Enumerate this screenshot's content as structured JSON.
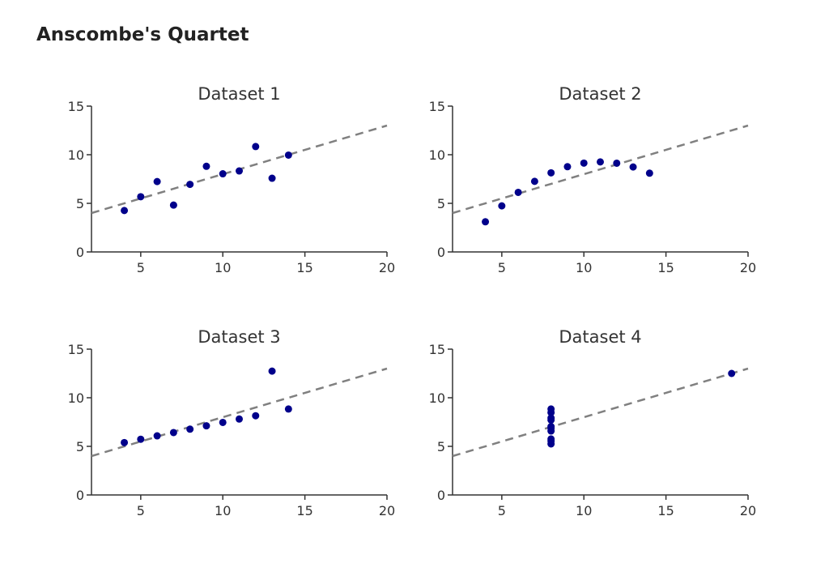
{
  "title": "Anscombe's Quartet",
  "colors": {
    "points": "#00008b",
    "fit_line": "#808080",
    "axis": "#333333"
  },
  "chart_data": [
    {
      "type": "scatter",
      "title": "Dataset 1",
      "xlim": [
        2,
        20
      ],
      "ylim": [
        0,
        15
      ],
      "xticks": [
        5,
        10,
        15,
        20
      ],
      "yticks": [
        0,
        5,
        10,
        15
      ],
      "grid": false,
      "x": [
        10,
        8,
        13,
        9,
        11,
        14,
        6,
        4,
        12,
        7,
        5
      ],
      "y": [
        8.04,
        6.95,
        7.58,
        8.81,
        8.33,
        9.96,
        7.24,
        4.26,
        10.84,
        4.82,
        5.68
      ],
      "fit_line": {
        "style": "dashed",
        "intercept": 3,
        "slope": 0.5
      }
    },
    {
      "type": "scatter",
      "title": "Dataset 2",
      "xlim": [
        2,
        20
      ],
      "ylim": [
        0,
        15
      ],
      "xticks": [
        5,
        10,
        15,
        20
      ],
      "yticks": [
        0,
        5,
        10,
        15
      ],
      "grid": false,
      "x": [
        10,
        8,
        13,
        9,
        11,
        14,
        6,
        4,
        12,
        7,
        5
      ],
      "y": [
        9.14,
        8.14,
        8.74,
        8.77,
        9.26,
        8.1,
        6.13,
        3.1,
        9.13,
        7.26,
        4.74
      ],
      "fit_line": {
        "style": "dashed",
        "intercept": 3,
        "slope": 0.5
      }
    },
    {
      "type": "scatter",
      "title": "Dataset 3",
      "xlim": [
        2,
        20
      ],
      "ylim": [
        0,
        15
      ],
      "xticks": [
        5,
        10,
        15,
        20
      ],
      "yticks": [
        0,
        5,
        10,
        15
      ],
      "grid": false,
      "x": [
        10,
        8,
        13,
        9,
        11,
        14,
        6,
        4,
        12,
        7,
        5
      ],
      "y": [
        7.46,
        6.77,
        12.74,
        7.11,
        7.81,
        8.84,
        6.08,
        5.39,
        8.15,
        6.42,
        5.73
      ],
      "fit_line": {
        "style": "dashed",
        "intercept": 3,
        "slope": 0.5
      }
    },
    {
      "type": "scatter",
      "title": "Dataset 4",
      "xlim": [
        2,
        20
      ],
      "ylim": [
        0,
        15
      ],
      "xticks": [
        5,
        10,
        15,
        20
      ],
      "yticks": [
        0,
        5,
        10,
        15
      ],
      "grid": false,
      "x": [
        8,
        8,
        8,
        8,
        8,
        8,
        8,
        19,
        8,
        8,
        8
      ],
      "y": [
        6.58,
        5.76,
        7.71,
        8.84,
        8.47,
        7.04,
        5.25,
        12.5,
        5.56,
        7.91,
        6.89
      ],
      "fit_line": {
        "style": "dashed",
        "intercept": 3,
        "slope": 0.5
      }
    }
  ]
}
